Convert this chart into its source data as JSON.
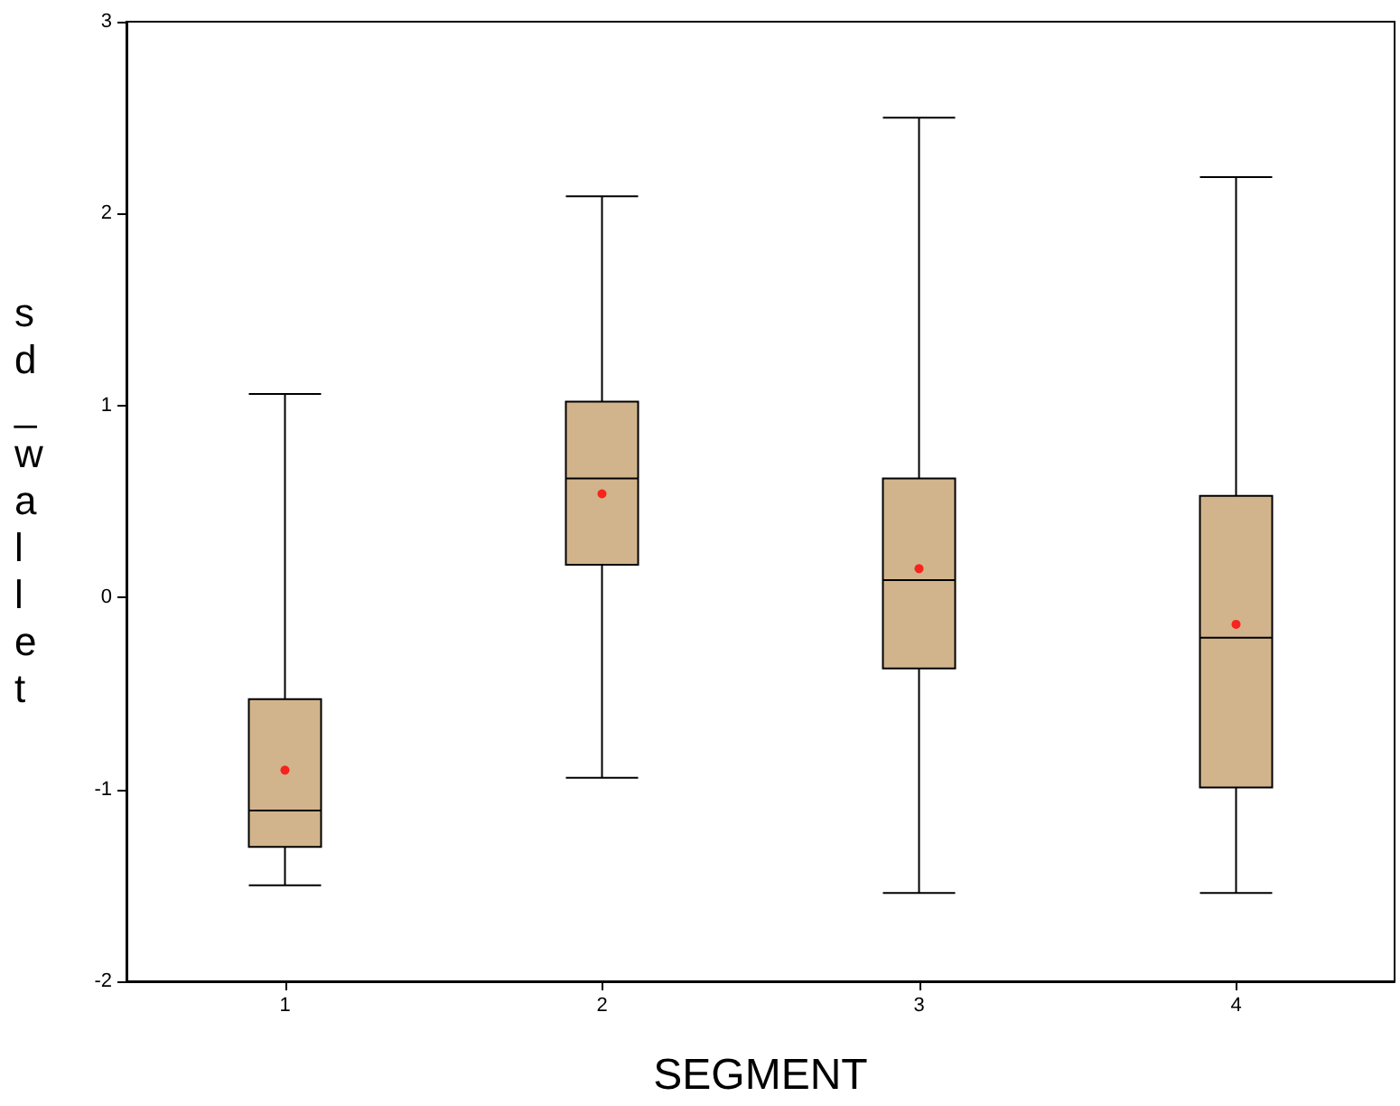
{
  "chart_data": {
    "type": "box",
    "xlabel": "SEGMENT",
    "ylabel": "sd_wallet",
    "categories": [
      "1",
      "2",
      "3",
      "4"
    ],
    "color": "#d2b48c",
    "ylim": [
      -2,
      3
    ],
    "yticks": [
      -2,
      -1,
      0,
      1,
      2,
      3
    ],
    "grid": false,
    "boxes": [
      {
        "low": -1.5,
        "q1": -1.3,
        "median": -1.11,
        "q3": -0.53,
        "high": 1.06,
        "mean": -0.9
      },
      {
        "low": -0.94,
        "q1": 0.17,
        "median": 0.62,
        "q3": 1.02,
        "high": 2.09,
        "mean": 0.54
      },
      {
        "low": -1.54,
        "q1": -0.37,
        "median": 0.09,
        "q3": 0.62,
        "high": 2.5,
        "mean": 0.15
      },
      {
        "low": -1.54,
        "q1": -0.99,
        "median": -0.21,
        "q3": 0.53,
        "high": 2.19,
        "mean": -0.14
      }
    ]
  }
}
